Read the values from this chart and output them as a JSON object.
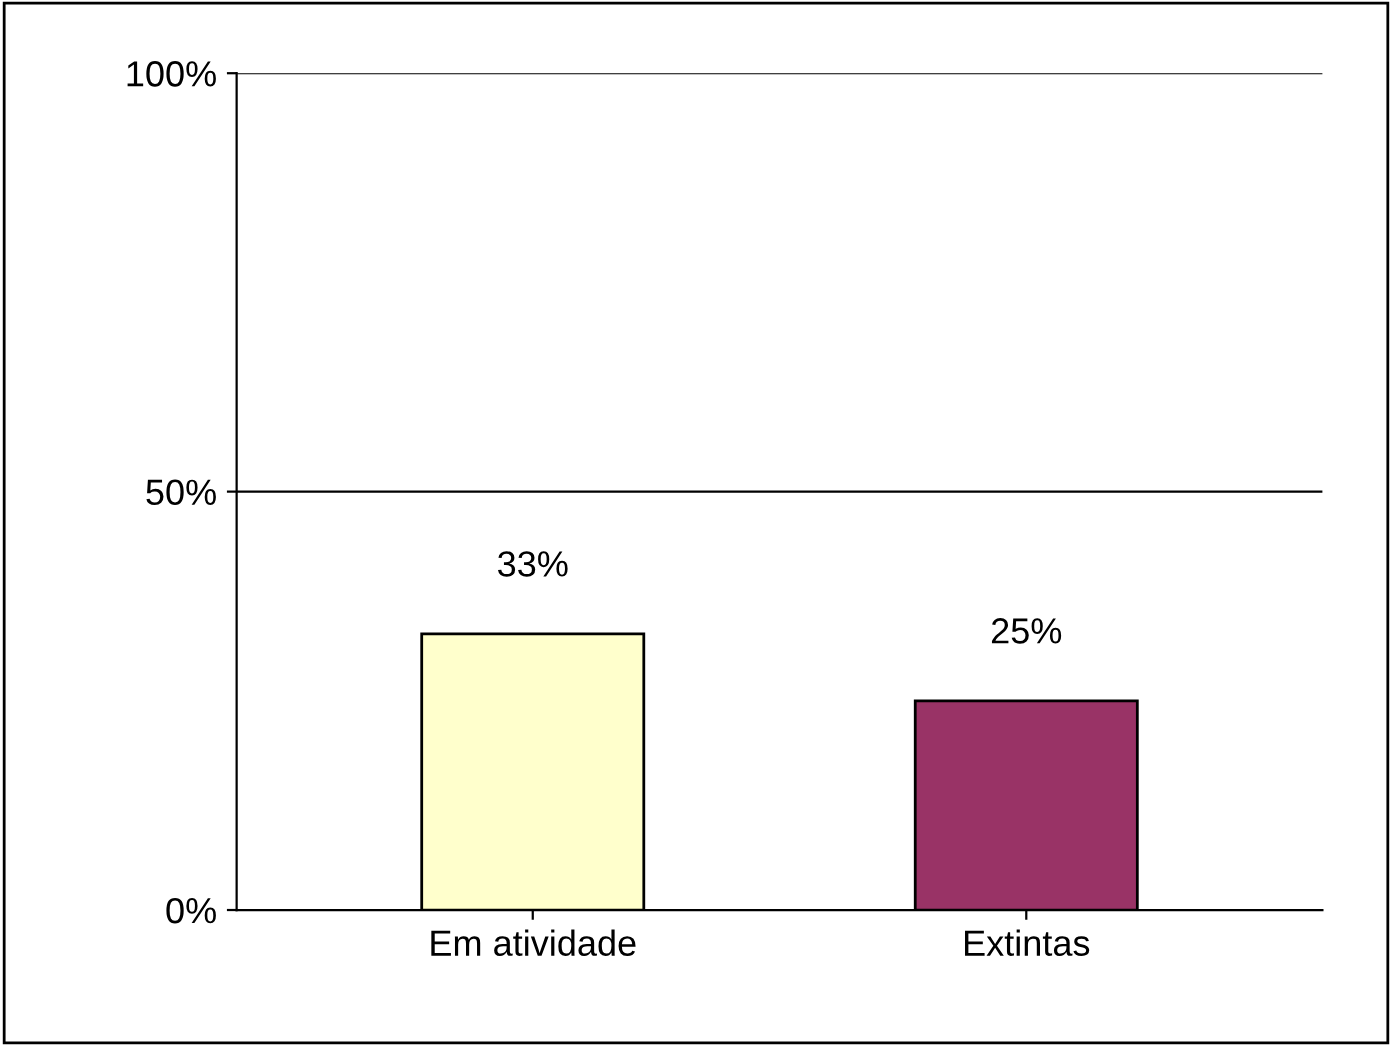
{
  "chart_data": {
    "type": "bar",
    "categories": [
      "Em atividade",
      "Extintas"
    ],
    "values": [
      33,
      25
    ],
    "colors": [
      "#ffffcc",
      "#993366"
    ],
    "value_labels": [
      "33%",
      "25%"
    ],
    "ylim": [
      0,
      100
    ],
    "yticks": [
      {
        "value": 0,
        "label": "0%"
      },
      {
        "value": 50,
        "label": "50%"
      },
      {
        "value": 100,
        "label": "100%"
      }
    ],
    "grid": "y"
  }
}
